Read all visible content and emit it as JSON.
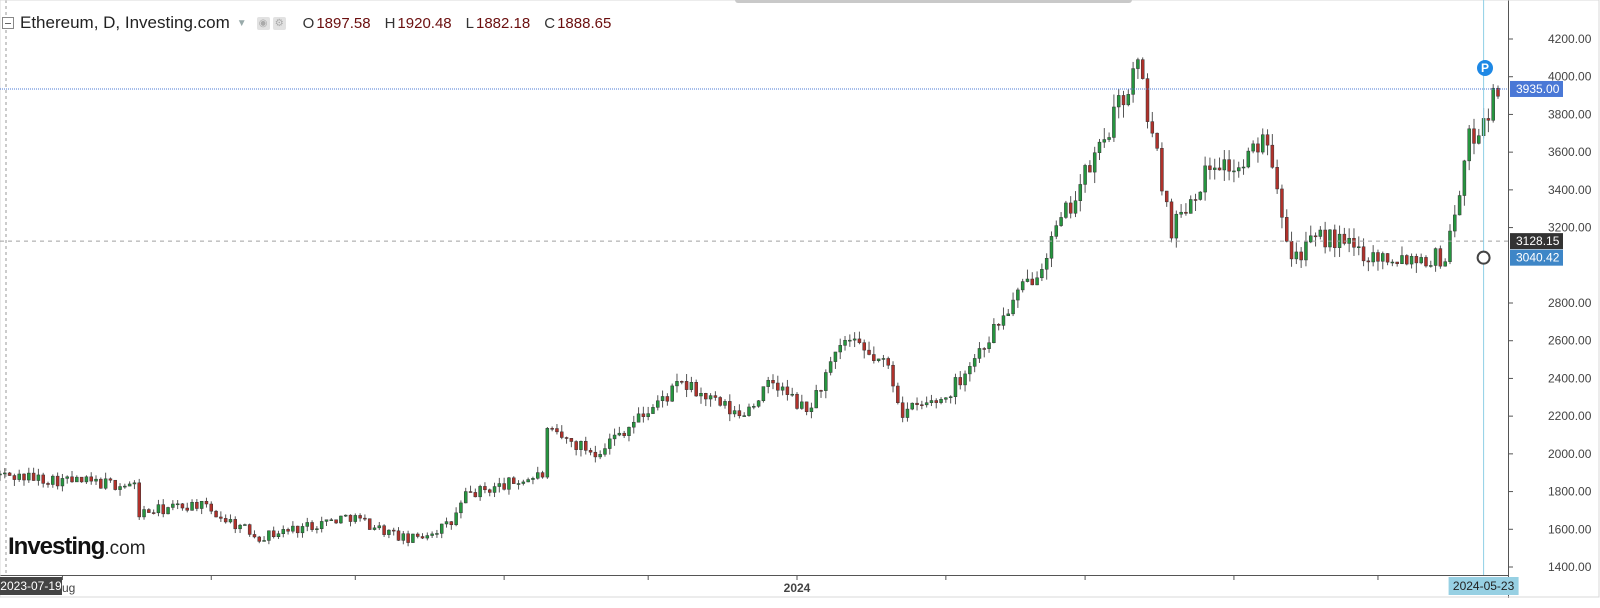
{
  "legend": {
    "title": "Ethereum, D, Investing.com",
    "open_key": "O",
    "open": "1897.58",
    "high_key": "H",
    "high": "1920.48",
    "low_key": "L",
    "low": "1882.18",
    "close_key": "C",
    "close": "1888.65"
  },
  "logo": {
    "main": "Investing",
    "suffix": ".com"
  },
  "price_tags": {
    "current": "3935.00",
    "crosshair": "3128.15",
    "cursor": "3040.42"
  },
  "crosshair_date": "2024-05-23",
  "start_date_label": "2023-07-19",
  "marker_p": "P",
  "colors": {
    "up": "#26953f",
    "down": "#b0312b",
    "current_tag": "#4a78d6",
    "crosshair_tag": "#333333",
    "cursor_tag": "#3e86c7",
    "date_tag": "#97d0e3",
    "crosshair_line": "#8fcfe6"
  },
  "chart_data": {
    "type": "candlestick",
    "title": "Ethereum, D, Investing.com",
    "ylim": [
      1400,
      4200
    ],
    "y_ticks": [
      "4200.00",
      "4000.00",
      "3800.00",
      "3600.00",
      "3400.00",
      "3200.00",
      "2800.00",
      "2600.00",
      "2400.00",
      "2200.00",
      "2000.00",
      "1800.00",
      "1600.00",
      "1400.00"
    ],
    "x_labels": [
      {
        "label": "ug",
        "date": "2023-08-01"
      },
      {
        "label": "2024",
        "date": "2024-01-01"
      }
    ],
    "x_tick_dates": [
      "2023-08-01",
      "2023-09-01",
      "2023-10-01",
      "2023-11-01",
      "2023-12-01",
      "2024-01-01",
      "2024-02-01",
      "2024-03-01",
      "2024-04-01",
      "2024-05-01"
    ],
    "x_range": [
      "2023-07-19",
      "2024-05-26"
    ],
    "key_closes": [
      [
        "2023-07-19",
        1888
      ],
      [
        "2023-08-01",
        1860
      ],
      [
        "2023-08-16",
        1830
      ],
      [
        "2023-08-17",
        1685
      ],
      [
        "2023-08-29",
        1735
      ],
      [
        "2023-09-11",
        1560
      ],
      [
        "2023-09-30",
        1670
      ],
      [
        "2023-10-12",
        1540
      ],
      [
        "2023-10-21",
        1630
      ],
      [
        "2023-10-24",
        1780
      ],
      [
        "2023-11-09",
        1890
      ],
      [
        "2023-11-10",
        2110
      ],
      [
        "2023-11-20",
        2010
      ],
      [
        "2023-12-08",
        2370
      ],
      [
        "2023-12-20",
        2200
      ],
      [
        "2023-12-27",
        2380
      ],
      [
        "2024-01-03",
        2220
      ],
      [
        "2024-01-11",
        2600
      ],
      [
        "2024-01-20",
        2460
      ],
      [
        "2024-01-23",
        2220
      ],
      [
        "2024-02-01",
        2300
      ],
      [
        "2024-02-20",
        2980
      ],
      [
        "2024-03-04",
        3620
      ],
      [
        "2024-03-12",
        4060
      ],
      [
        "2024-03-19",
        3200
      ],
      [
        "2024-03-28",
        3560
      ],
      [
        "2024-04-02",
        3500
      ],
      [
        "2024-04-08",
        3700
      ],
      [
        "2024-04-13",
        3050
      ],
      [
        "2024-04-20",
        3150
      ],
      [
        "2024-04-30",
        3050
      ],
      [
        "2024-05-15",
        3040
      ],
      [
        "2024-05-20",
        3660
      ],
      [
        "2024-05-23",
        3780
      ],
      [
        "2024-05-26",
        3935
      ]
    ]
  }
}
